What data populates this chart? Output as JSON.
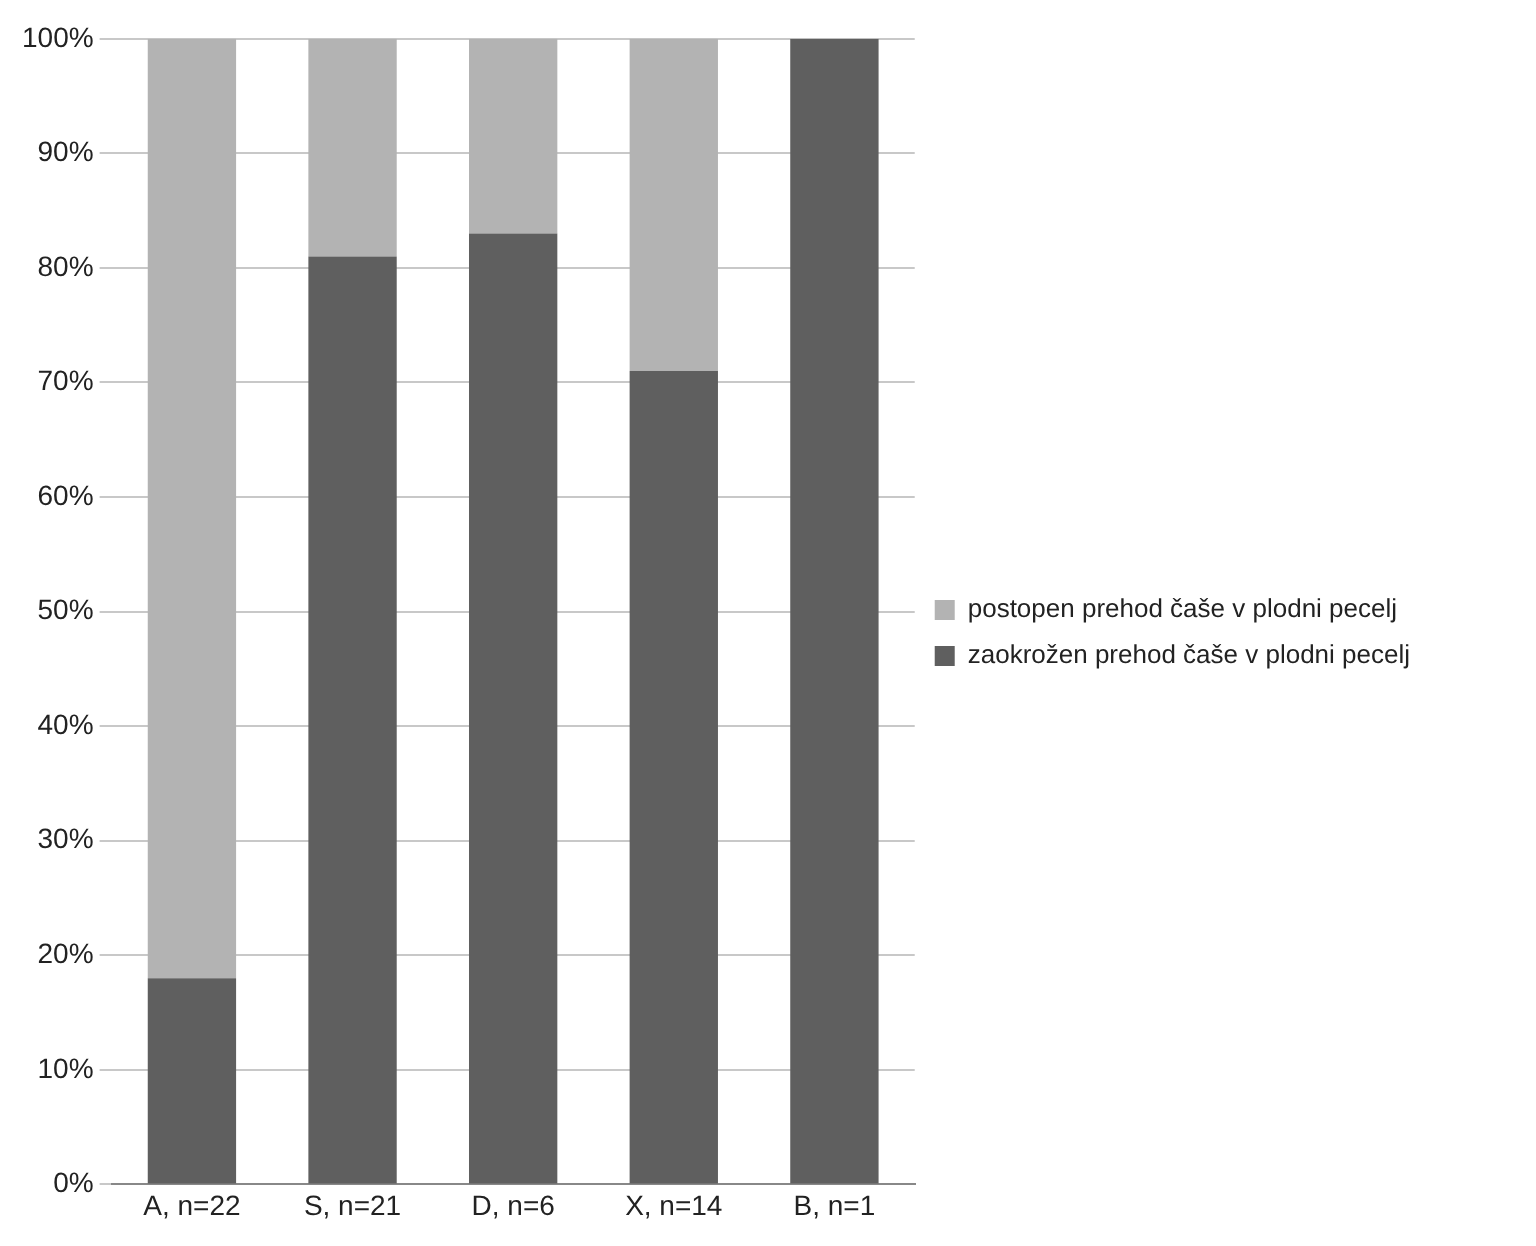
{
  "chart_data": {
    "type": "bar",
    "stacked": true,
    "categories": [
      "A, n=22",
      "S, n=21",
      "D, n=6",
      "X, n=14",
      "B, n=1"
    ],
    "series": [
      {
        "name": "zaokrožen prehod čaše v plodni pecelj",
        "color": "#5f5f5f",
        "values": [
          18,
          81,
          83,
          71,
          100
        ]
      },
      {
        "name": "postopen prehod čaše v plodni pecelj",
        "color": "#b3b3b3",
        "values": [
          82,
          19,
          17,
          29,
          0
        ]
      }
    ],
    "ylim": [
      0,
      100
    ],
    "yticks": [
      {
        "value": 0,
        "label": "0%"
      },
      {
        "value": 10,
        "label": "10%"
      },
      {
        "value": 20,
        "label": "20%"
      },
      {
        "value": 30,
        "label": "30%"
      },
      {
        "value": 40,
        "label": "40%"
      },
      {
        "value": 50,
        "label": "50%"
      },
      {
        "value": 60,
        "label": "60%"
      },
      {
        "value": 70,
        "label": "70%"
      },
      {
        "value": 80,
        "label": "80%"
      },
      {
        "value": 90,
        "label": "90%"
      },
      {
        "value": 100,
        "label": "100%"
      }
    ],
    "grid": "y",
    "legend": "right"
  }
}
